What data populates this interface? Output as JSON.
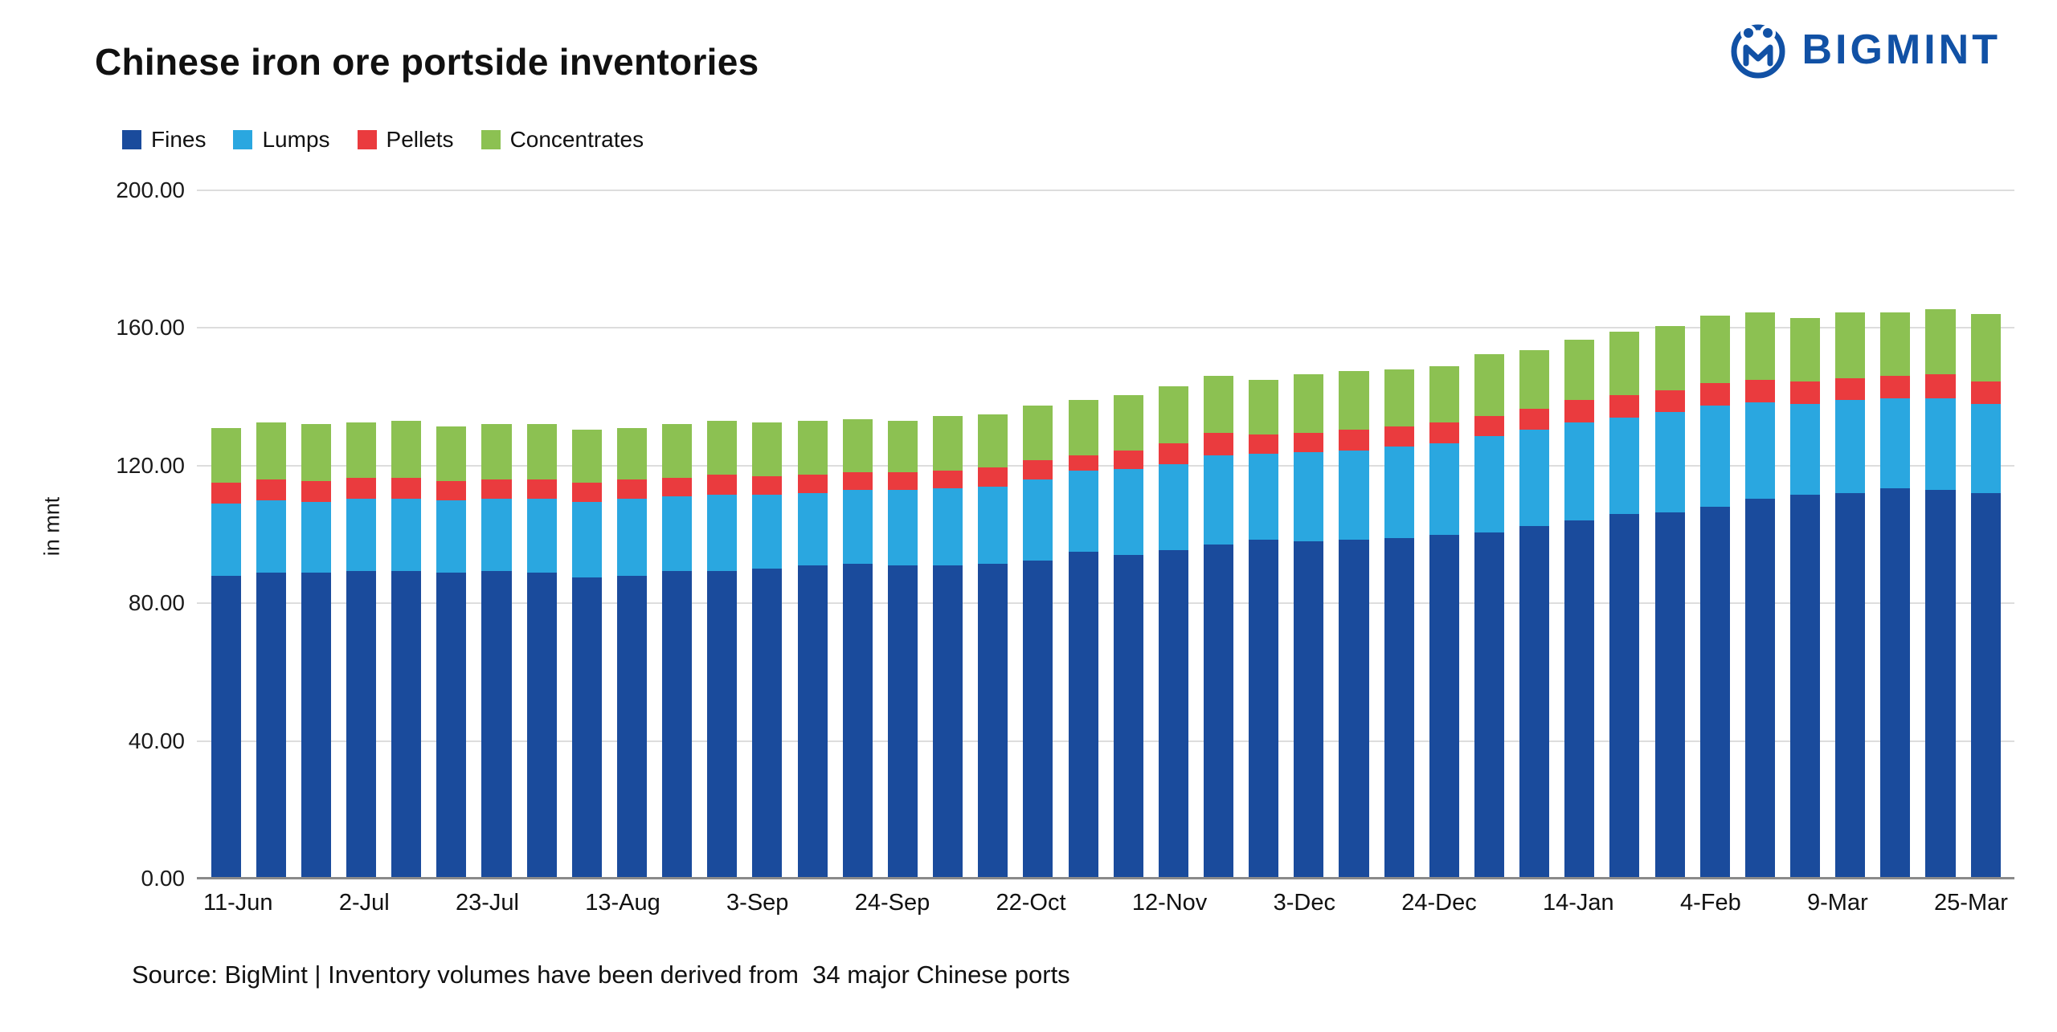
{
  "header": {
    "title": "Chinese iron ore portside inventories",
    "logo_text": "BIGMINT",
    "logo_color": "#1151a5"
  },
  "legend": [
    {
      "label": "Fines",
      "color": "#1a4b9c"
    },
    {
      "label": "Lumps",
      "color": "#2aa7e0"
    },
    {
      "label": "Pellets",
      "color": "#ea3b3e"
    },
    {
      "label": "Concentrates",
      "color": "#8cc152"
    }
  ],
  "chart_data": {
    "type": "bar",
    "stacked": true,
    "title": "Chinese iron ore portside inventories",
    "ylabel": "in mnt",
    "ylim": [
      0,
      200
    ],
    "yticks": [
      "0.00",
      "40.00",
      "80.00",
      "120.00",
      "160.00",
      "200.00"
    ],
    "grid": "horizontal",
    "legend_position": "top-left",
    "n_bars": 40,
    "visible_x_labels": [
      "11-Jun",
      "2-Jul",
      "23-Jul",
      "13-Aug",
      "3-Sep",
      "24-Sep",
      "22-Oct",
      "12-Nov",
      "3-Dec",
      "24-Dec",
      "14-Jan",
      "4-Feb",
      "9-Mar",
      "25-Mar"
    ],
    "categories": [
      "11-Jun",
      "",
      "",
      "2-Jul",
      "",
      "",
      "23-Jul",
      "",
      "",
      "13-Aug",
      "",
      "",
      "3-Sep",
      "",
      "",
      "24-Sep",
      "",
      "",
      "22-Oct",
      "",
      "",
      "12-Nov",
      "",
      "",
      "3-Dec",
      "",
      "",
      "24-Dec",
      "",
      "",
      "14-Jan",
      "",
      "",
      "4-Feb",
      "",
      "",
      "9-Mar",
      "",
      "",
      "25-Mar"
    ],
    "series": [
      {
        "name": "Fines",
        "color": "#1a4b9c",
        "values": [
          88,
          89,
          89,
          89.5,
          89.5,
          89,
          89.5,
          89,
          87.5,
          88,
          89.5,
          89.5,
          90,
          91,
          91.5,
          91,
          91,
          91.5,
          92.5,
          95,
          94,
          95.5,
          97,
          98.5,
          98,
          98.5,
          99,
          100,
          100.5,
          102.5,
          104,
          106,
          106.5,
          108,
          110.5,
          111.5,
          112,
          113.5,
          113,
          112
        ]
      },
      {
        "name": "Lumps",
        "color": "#2aa7e0",
        "values": [
          21,
          21,
          20.5,
          21,
          21,
          21,
          21,
          21.5,
          22,
          22.5,
          21.5,
          22,
          21.5,
          21,
          21.5,
          22,
          22.5,
          22.5,
          23.5,
          23.5,
          25,
          25,
          26,
          25,
          26,
          26,
          26.5,
          26.5,
          28,
          28,
          28.5,
          28,
          29,
          29.5,
          28,
          26.5,
          27,
          26,
          26.5,
          26
        ]
      },
      {
        "name": "Pellets",
        "color": "#ea3b3e",
        "values": [
          6,
          6,
          6,
          6,
          6,
          5.5,
          5.5,
          5.5,
          5.5,
          5.5,
          5.5,
          6,
          5.5,
          5.5,
          5,
          5,
          5,
          5.5,
          5.5,
          4.5,
          5.5,
          6,
          6.5,
          5.5,
          5.5,
          6,
          6,
          6,
          6,
          6,
          6.5,
          6.5,
          6.5,
          6.5,
          6.5,
          6.5,
          6.5,
          6.5,
          7,
          6.5
        ]
      },
      {
        "name": "Concentrates",
        "color": "#8cc152",
        "values": [
          16,
          16.5,
          16.5,
          16,
          16.5,
          16,
          16,
          16,
          15.5,
          15,
          15.5,
          15.5,
          15.5,
          15.5,
          15.5,
          15,
          16,
          15.5,
          16,
          16,
          16,
          16.5,
          16.5,
          16,
          17,
          17,
          16.5,
          16.5,
          18,
          17,
          17.5,
          18.5,
          18.5,
          19.5,
          19.5,
          18.5,
          19,
          18.5,
          19,
          19.5
        ]
      }
    ]
  },
  "footer": {
    "source": "Source: BigMint | Inventory volumes have been derived from  34 major Chinese ports"
  }
}
